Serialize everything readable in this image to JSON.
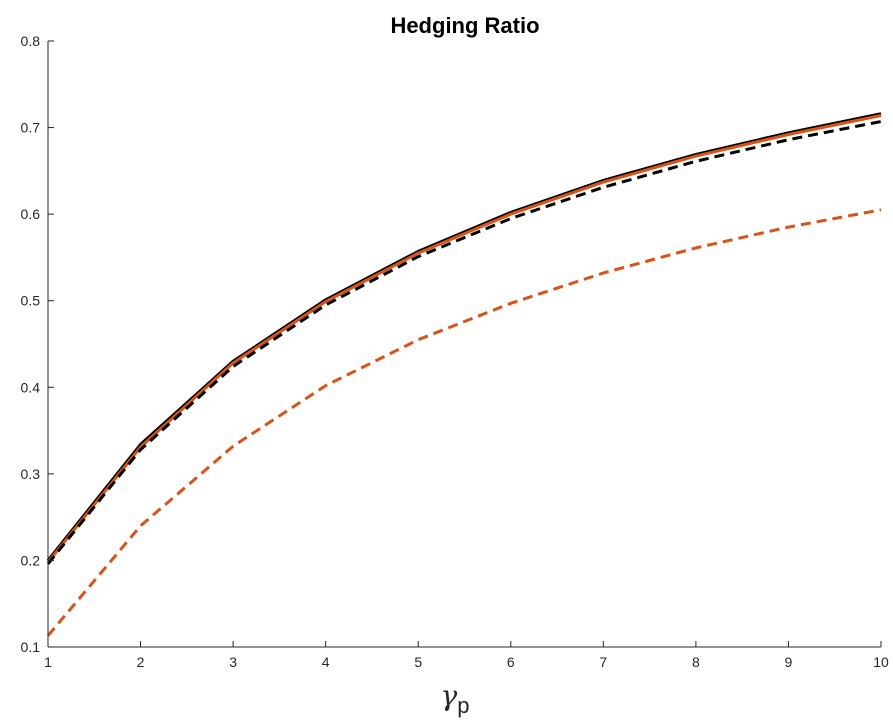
{
  "chart_data": {
    "type": "line",
    "title": "Hedging Ratio",
    "xlabel": "γ",
    "xlabel_subscript": "p",
    "ylabel": "",
    "xlim": [
      1,
      10
    ],
    "ylim": [
      0.1,
      0.8
    ],
    "xticks": [
      1,
      2,
      3,
      4,
      5,
      6,
      7,
      8,
      9,
      10
    ],
    "yticks": [
      0.1,
      0.2,
      0.3,
      0.4,
      0.5,
      0.6,
      0.7,
      0.8
    ],
    "ytick_labels": [
      "0.1",
      "0.2",
      "0.3",
      "0.4",
      "0.5",
      "0.6",
      "0.7",
      "0.8"
    ],
    "grid": false,
    "x": [
      1,
      2,
      3,
      4,
      5,
      6,
      7,
      8,
      9,
      10
    ],
    "series": [
      {
        "color": "#000000",
        "style": "solid",
        "width": 3,
        "values": [
          0.2,
          0.334,
          0.43,
          0.501,
          0.557,
          0.602,
          0.639,
          0.669,
          0.694,
          0.716
        ]
      },
      {
        "color": "#D95319",
        "style": "solid",
        "width": 3,
        "values": [
          0.198,
          0.331,
          0.428,
          0.499,
          0.555,
          0.6,
          0.637,
          0.667,
          0.692,
          0.714
        ]
      },
      {
        "color": "#000000",
        "style": "dashed",
        "width": 3,
        "values": [
          0.196,
          0.328,
          0.424,
          0.495,
          0.551,
          0.595,
          0.631,
          0.661,
          0.686,
          0.707
        ]
      },
      {
        "color": "#D95319",
        "style": "dashed",
        "width": 3,
        "values": [
          0.113,
          0.24,
          0.332,
          0.402,
          0.455,
          0.497,
          0.532,
          0.561,
          0.585,
          0.605
        ]
      }
    ]
  }
}
